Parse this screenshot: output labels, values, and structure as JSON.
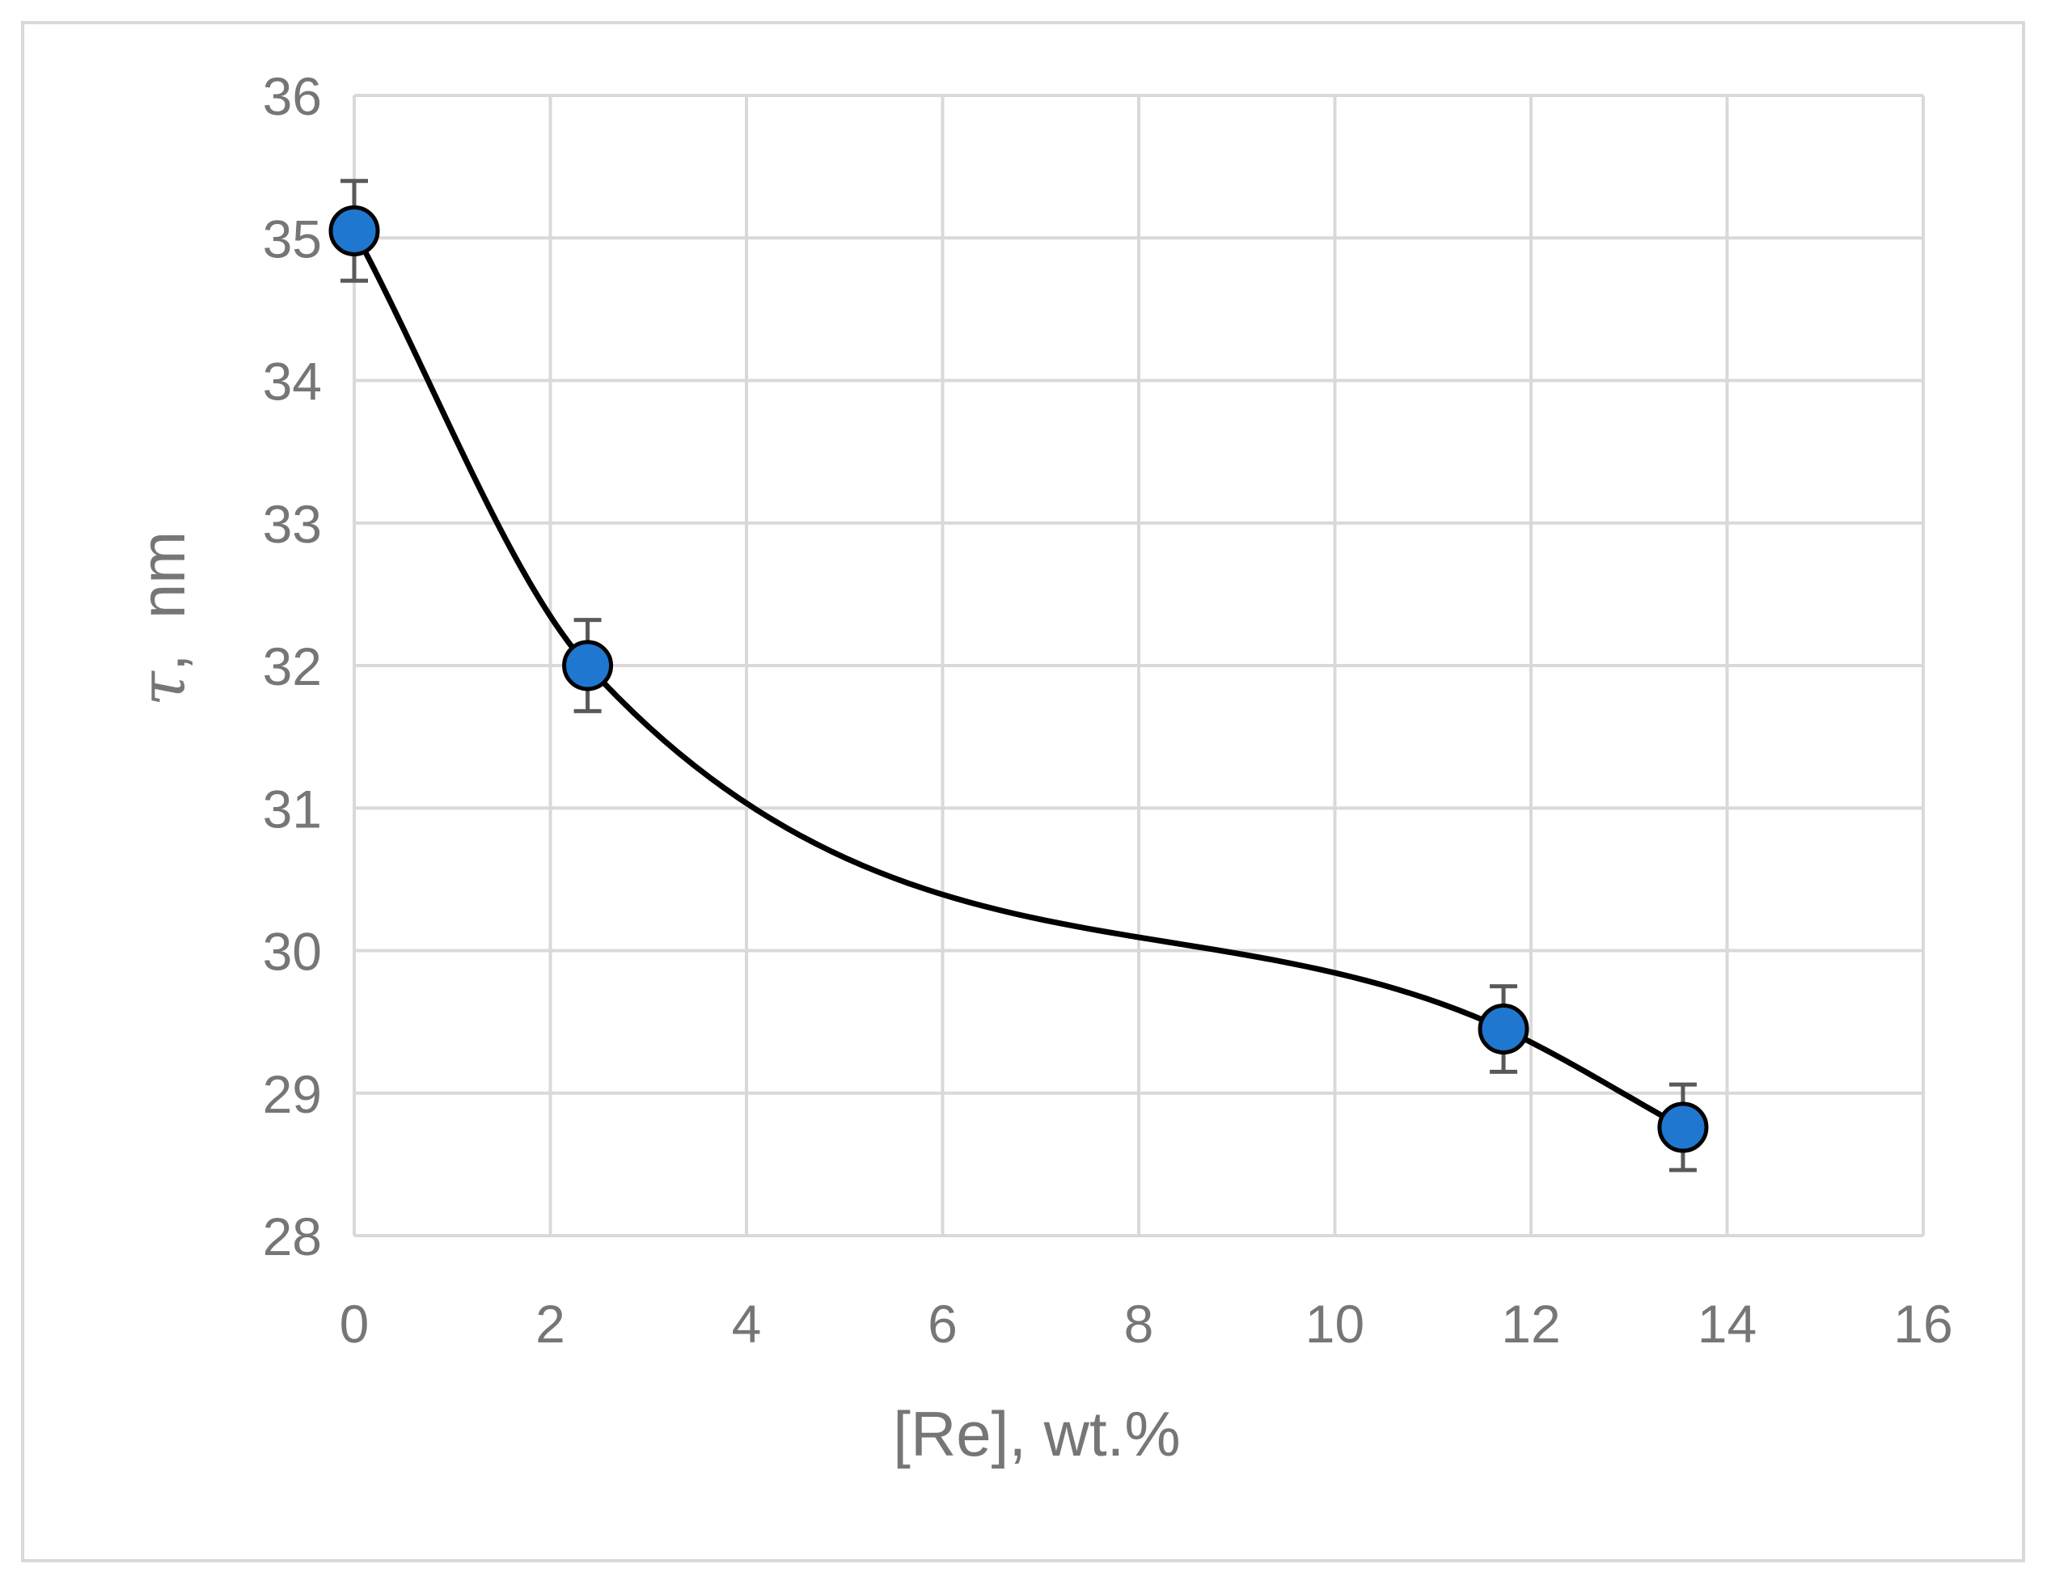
{
  "chart_data": {
    "type": "scatter",
    "title": "",
    "xlabel": "[Re], wt.%",
    "ylabel": {
      "symbol": "τ",
      "unit": ",  nm"
    },
    "xlim": [
      0,
      16
    ],
    "ylim": [
      28,
      36
    ],
    "x_ticks": [
      "0",
      "2",
      "4",
      "6",
      "8",
      "10",
      "12",
      "14",
      "16"
    ],
    "y_ticks": [
      "28",
      "29",
      "30",
      "31",
      "32",
      "33",
      "34",
      "35",
      "36"
    ],
    "grid": true,
    "legend": "none",
    "series": [
      {
        "x": [
          0,
          2.38,
          11.72,
          13.55
        ],
        "y": [
          35.05,
          32.0,
          29.45,
          28.76
        ],
        "error": [
          0.35,
          0.32,
          0.3,
          0.3
        ],
        "marker_color": "#1f77d0",
        "line_color": "#000000",
        "smoothed_line": true
      }
    ],
    "colors": {
      "grid": "#d9d9d9",
      "text": "#767676",
      "error_bar": "#595959",
      "marker": "#1f77d0",
      "marker_edge": "#000000"
    }
  }
}
